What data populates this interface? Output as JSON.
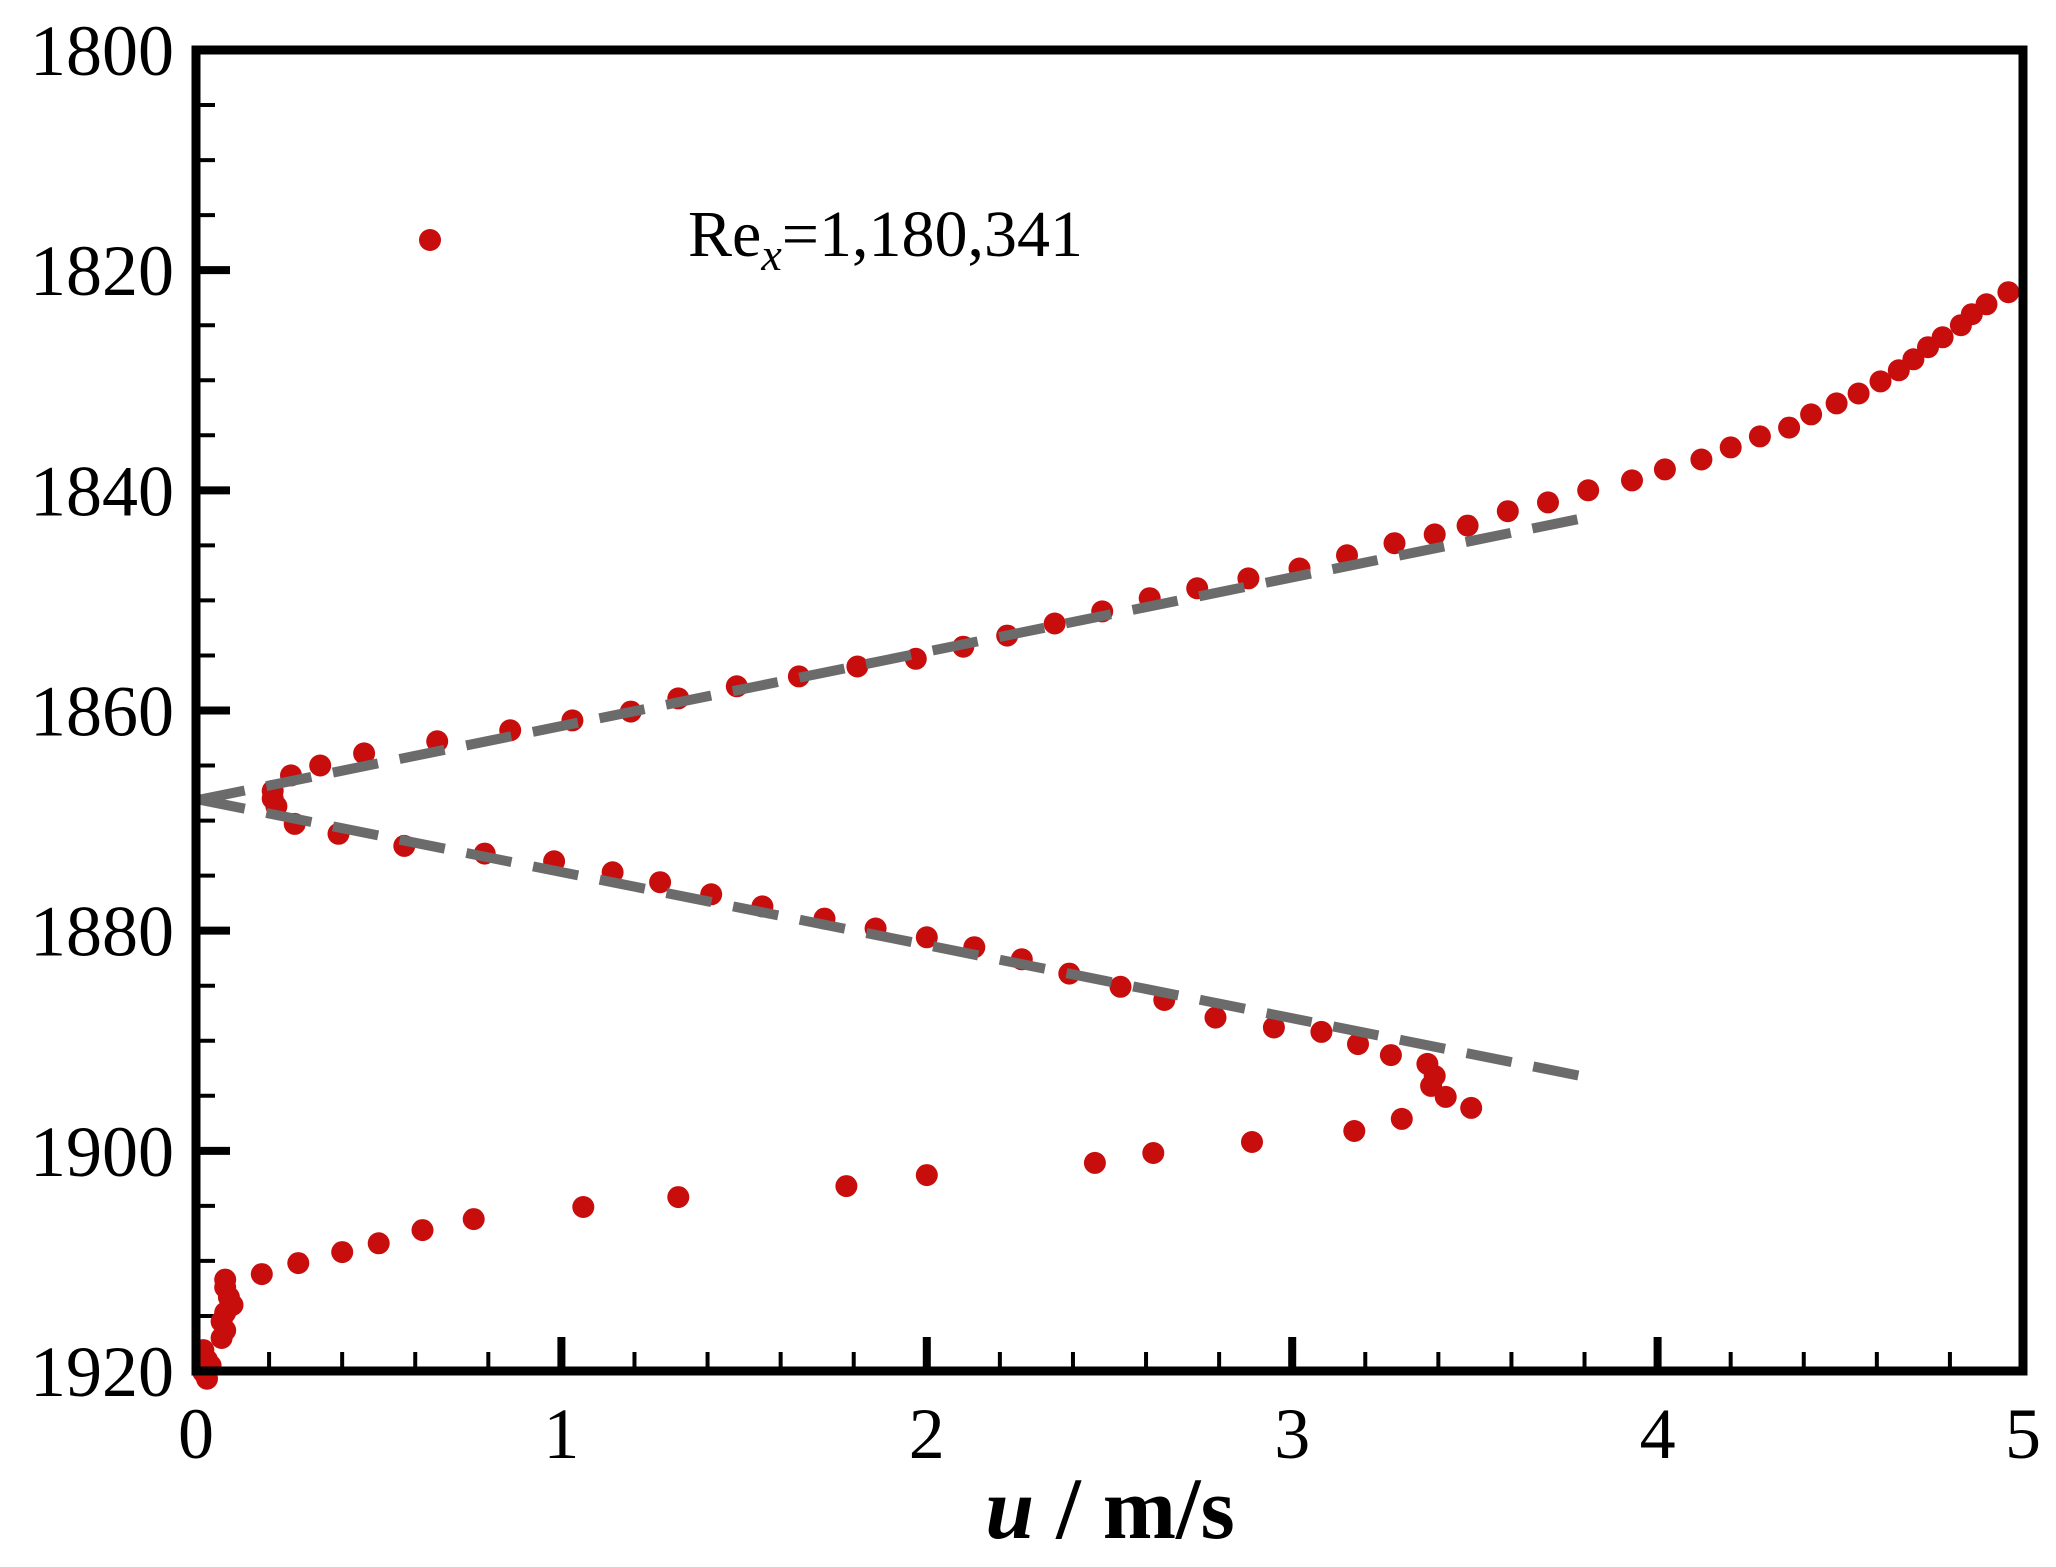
{
  "figure": {
    "background": "#ffffff"
  },
  "colors": {
    "marker": "#c80d0d",
    "dashed_line": "#6b6b6b",
    "axis": "#000000"
  },
  "legend": {
    "marker_icon": "filled-circle-icon",
    "prefix": "Re",
    "subscript": "x",
    "value": "=1,180,341"
  },
  "axes": {
    "x": {
      "label_var": "u",
      "label_rest": " / m/s",
      "min": 0,
      "max": 5,
      "major_ticks": [
        0,
        1,
        2,
        3,
        4,
        5
      ],
      "minor_tick_step": 0.2
    },
    "y": {
      "min": 1800,
      "max": 1920,
      "inverted": true,
      "major_ticks": [
        1800,
        1820,
        1840,
        1860,
        1880,
        1900,
        1920
      ],
      "minor_tick_step": 5
    }
  },
  "chart_data": {
    "type": "scatter",
    "title": "",
    "xlabel": "u / m/s",
    "ylabel": "",
    "xlim": [
      0,
      5
    ],
    "ylim": [
      1920,
      1800
    ],
    "grid": false,
    "legend_position": "upper-left-inside",
    "legend_entries": [
      {
        "label": "Re_x=1,180,341",
        "marker": "red-filled-circle"
      }
    ],
    "series": [
      {
        "name": "Re_x=1,180,341",
        "color": "#c80d0d",
        "marker": "circle",
        "points": [
          [
            4.96,
            1822.0
          ],
          [
            4.9,
            1823.1
          ],
          [
            4.86,
            1824.0
          ],
          [
            4.83,
            1825.0
          ],
          [
            4.78,
            1826.1
          ],
          [
            4.74,
            1827.0
          ],
          [
            4.7,
            1828.1
          ],
          [
            4.66,
            1829.1
          ],
          [
            4.61,
            1830.1
          ],
          [
            4.55,
            1831.2
          ],
          [
            4.49,
            1832.1
          ],
          [
            4.42,
            1833.1
          ],
          [
            4.36,
            1834.3
          ],
          [
            4.28,
            1835.1
          ],
          [
            4.2,
            1836.1
          ],
          [
            4.12,
            1837.2
          ],
          [
            4.02,
            1838.1
          ],
          [
            3.93,
            1839.1
          ],
          [
            3.81,
            1840.0
          ],
          [
            3.7,
            1841.1
          ],
          [
            3.59,
            1841.9
          ],
          [
            3.48,
            1843.2
          ],
          [
            3.39,
            1844.0
          ],
          [
            3.28,
            1844.8
          ],
          [
            3.15,
            1845.9
          ],
          [
            3.02,
            1847.1
          ],
          [
            2.88,
            1848.0
          ],
          [
            2.74,
            1848.9
          ],
          [
            2.61,
            1849.8
          ],
          [
            2.48,
            1851.0
          ],
          [
            2.35,
            1852.1
          ],
          [
            2.22,
            1853.2
          ],
          [
            2.1,
            1854.2
          ],
          [
            1.97,
            1855.3
          ],
          [
            1.81,
            1856.0
          ],
          [
            1.65,
            1856.9
          ],
          [
            1.48,
            1857.8
          ],
          [
            1.32,
            1858.9
          ],
          [
            1.19,
            1860.1
          ],
          [
            1.03,
            1860.9
          ],
          [
            0.86,
            1861.8
          ],
          [
            0.66,
            1862.8
          ],
          [
            0.46,
            1863.9
          ],
          [
            0.34,
            1865.0
          ],
          [
            0.26,
            1865.9
          ],
          [
            0.21,
            1867.3
          ],
          [
            0.21,
            1868.0
          ],
          [
            0.22,
            1868.7
          ],
          [
            0.27,
            1870.3
          ],
          [
            0.39,
            1871.2
          ],
          [
            0.57,
            1872.3
          ],
          [
            0.79,
            1873.0
          ],
          [
            0.98,
            1873.7
          ],
          [
            1.14,
            1874.7
          ],
          [
            1.27,
            1875.6
          ],
          [
            1.41,
            1876.7
          ],
          [
            1.55,
            1877.8
          ],
          [
            1.72,
            1878.9
          ],
          [
            1.86,
            1879.8
          ],
          [
            2.0,
            1880.6
          ],
          [
            2.13,
            1881.5
          ],
          [
            2.26,
            1882.6
          ],
          [
            2.39,
            1883.9
          ],
          [
            2.53,
            1885.1
          ],
          [
            2.65,
            1886.3
          ],
          [
            2.79,
            1887.9
          ],
          [
            2.95,
            1888.8
          ],
          [
            3.08,
            1889.2
          ],
          [
            3.18,
            1890.3
          ],
          [
            3.27,
            1891.3
          ],
          [
            3.37,
            1892.1
          ],
          [
            3.39,
            1893.2
          ],
          [
            3.38,
            1894.1
          ],
          [
            3.42,
            1895.1
          ],
          [
            3.49,
            1896.1
          ],
          [
            3.3,
            1897.1
          ],
          [
            3.17,
            1898.2
          ],
          [
            2.89,
            1899.2
          ],
          [
            2.62,
            1900.2
          ],
          [
            2.46,
            1901.1
          ],
          [
            2.0,
            1902.2
          ],
          [
            1.78,
            1903.2
          ],
          [
            1.32,
            1904.2
          ],
          [
            1.06,
            1905.1
          ],
          [
            0.76,
            1906.2
          ],
          [
            0.62,
            1907.2
          ],
          [
            0.5,
            1908.4
          ],
          [
            0.4,
            1909.2
          ],
          [
            0.28,
            1910.2
          ],
          [
            0.18,
            1911.2
          ],
          [
            0.08,
            1911.7
          ],
          [
            0.08,
            1912.4
          ],
          [
            0.09,
            1913.3
          ],
          [
            0.1,
            1914.0
          ],
          [
            0.08,
            1914.7
          ],
          [
            0.07,
            1915.5
          ],
          [
            0.08,
            1916.3
          ],
          [
            0.07,
            1917.0
          ],
          [
            0.02,
            1918.1
          ],
          [
            0.03,
            1919.0
          ],
          [
            0.04,
            1919.5
          ],
          [
            0.02,
            1920.1
          ],
          [
            0.03,
            1920.7
          ]
        ]
      }
    ],
    "reference_lines": [
      {
        "name": "upper-shear-layer-dashed-fit",
        "color": "#6b6b6b",
        "style": "dashed",
        "from": [
          0.01,
          1868.1
        ],
        "to": [
          3.83,
          1842.3
        ]
      },
      {
        "name": "lower-shear-layer-dashed-fit",
        "color": "#6b6b6b",
        "style": "dashed",
        "from": [
          0.01,
          1868.1
        ],
        "to": [
          3.79,
          1893.2
        ]
      }
    ]
  }
}
